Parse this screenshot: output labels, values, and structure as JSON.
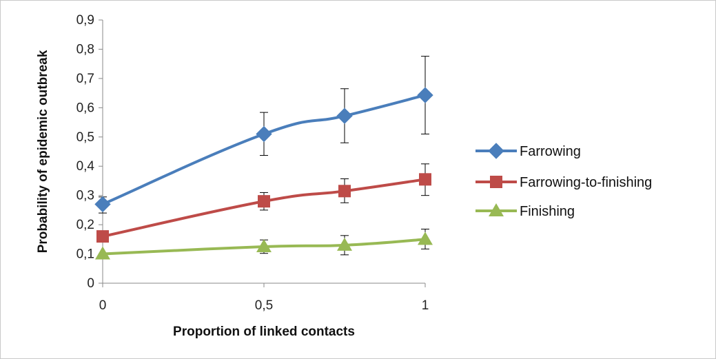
{
  "chart_data": {
    "type": "line",
    "xlabel": "Proportion  of linked contacts",
    "ylabel": "Probability of epidemic outbreak",
    "x_ticks": [
      "0",
      "0,5",
      "1"
    ],
    "y_ticks": [
      "0",
      "0,1",
      "0,2",
      "0,3",
      "0,4",
      "0,5",
      "0,6",
      "0,7",
      "0,8",
      "0,9"
    ],
    "xlim": [
      0,
      1
    ],
    "ylim": [
      0,
      0.9
    ],
    "grid": false,
    "legend_position": "right",
    "series": [
      {
        "name": "Farrowing",
        "color": "#4a7ebb",
        "marker": "diamond",
        "x": [
          0,
          0.5,
          0.75,
          1
        ],
        "y": [
          0.27,
          0.51,
          0.572,
          0.643
        ],
        "err_low": [
          0.24,
          0.437,
          0.48,
          0.51
        ],
        "err_high": [
          0.295,
          0.584,
          0.665,
          0.776
        ]
      },
      {
        "name": "Farrowing-to-finishing",
        "color": "#be4b48",
        "marker": "square",
        "x": [
          0,
          0.5,
          0.75,
          1
        ],
        "y": [
          0.16,
          0.28,
          0.315,
          0.355
        ],
        "err_low": [
          0.16,
          0.25,
          0.275,
          0.3
        ],
        "err_high": [
          0.16,
          0.31,
          0.357,
          0.408
        ]
      },
      {
        "name": "Finishing",
        "color": "#98b954",
        "marker": "triangle",
        "x": [
          0,
          0.5,
          0.75,
          1
        ],
        "y": [
          0.1,
          0.125,
          0.13,
          0.15
        ],
        "err_low": [
          0.1,
          0.102,
          0.097,
          0.117
        ],
        "err_high": [
          0.1,
          0.148,
          0.163,
          0.185
        ]
      }
    ]
  }
}
